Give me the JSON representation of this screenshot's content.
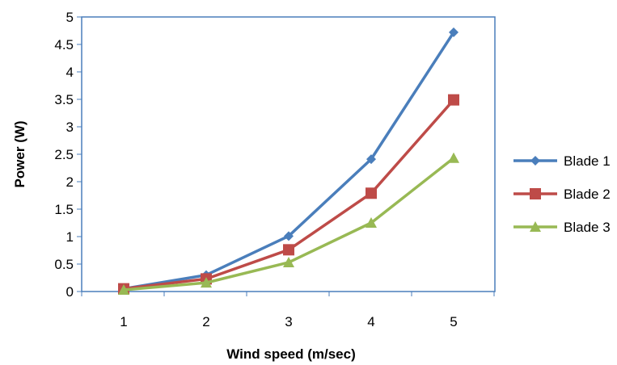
{
  "chart_data": {
    "type": "line",
    "title": "",
    "xlabel": "Wind speed (m/sec)",
    "ylabel": "Power (W)",
    "x": [
      1,
      2,
      3,
      4,
      5
    ],
    "x_tick_labels": [
      "1",
      "2",
      "3",
      "4",
      "5"
    ],
    "ylim": [
      0,
      5
    ],
    "y_tick_labels": [
      "0",
      "0.5",
      "1",
      "1.5",
      "2",
      "2.5",
      "3",
      "3.5",
      "4",
      "4.5",
      "5"
    ],
    "grid": false,
    "legend_position": "right",
    "series": [
      {
        "name": "Blade 1",
        "color": "#4a7ebb",
        "marker": "diamond",
        "values": [
          0.05,
          0.3,
          1.01,
          2.41,
          4.72
        ]
      },
      {
        "name": "Blade 2",
        "color": "#be4b48",
        "marker": "square",
        "values": [
          0.05,
          0.23,
          0.76,
          1.79,
          3.49
        ]
      },
      {
        "name": "Blade 3",
        "color": "#98b954",
        "marker": "triangle",
        "values": [
          0.03,
          0.16,
          0.53,
          1.25,
          2.43
        ]
      }
    ]
  }
}
